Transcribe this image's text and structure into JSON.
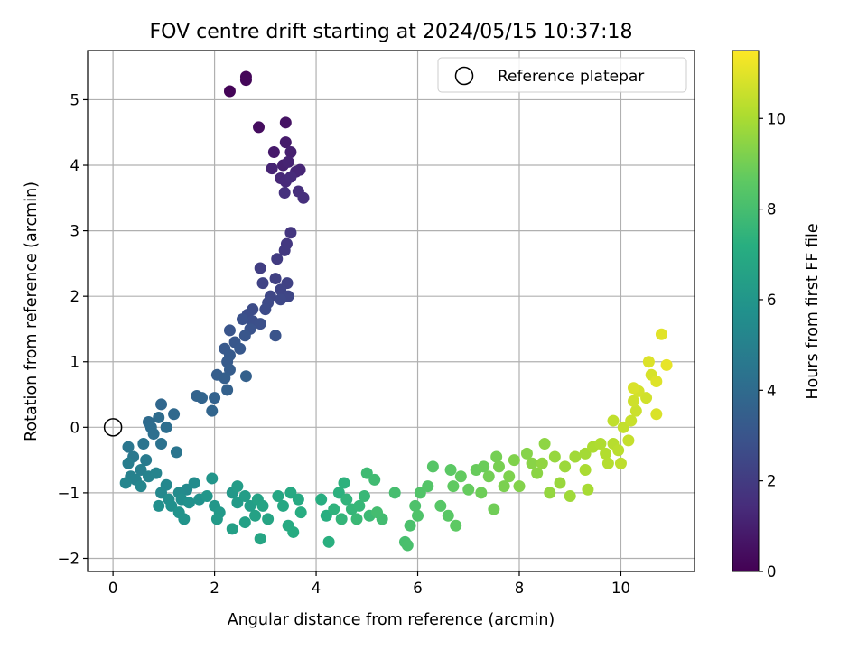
{
  "chart_data": {
    "type": "scatter",
    "title": "FOV centre drift starting at 2024/05/15 10:37:18",
    "xlabel": "Angular distance from reference (arcmin)",
    "ylabel": "Rotation from reference (arcmin)",
    "xlim": [
      -0.5,
      11.45
    ],
    "ylim": [
      -2.2,
      5.75
    ],
    "xticks": [
      0,
      2,
      4,
      6,
      8,
      10
    ],
    "yticks": [
      -2,
      -1,
      0,
      1,
      2,
      3,
      4,
      5
    ],
    "grid": true,
    "legend": {
      "position": "top-right",
      "entries": [
        "Reference platepar"
      ]
    },
    "reference_point": {
      "x": 0,
      "y": 0
    },
    "colorbar": {
      "label": "Hours from first FF file",
      "colormap": "viridis",
      "range": [
        0,
        11.5
      ],
      "ticks": [
        0,
        2,
        4,
        6,
        8,
        10
      ]
    },
    "points": [
      [
        2.3,
        5.13,
        0.1
      ],
      [
        2.62,
        5.35,
        0.15
      ],
      [
        2.62,
        5.3,
        0.2
      ],
      [
        2.87,
        4.58,
        0.4
      ],
      [
        3.4,
        4.65,
        0.6
      ],
      [
        3.17,
        4.2,
        0.8
      ],
      [
        3.4,
        4.35,
        0.85
      ],
      [
        3.5,
        4.2,
        1.0
      ],
      [
        3.35,
        4.0,
        1.05
      ],
      [
        3.45,
        4.05,
        1.1
      ],
      [
        3.13,
        3.95,
        1.15
      ],
      [
        3.68,
        3.93,
        1.2
      ],
      [
        3.6,
        3.9,
        1.25
      ],
      [
        3.3,
        3.8,
        1.3
      ],
      [
        3.4,
        3.75,
        1.35
      ],
      [
        3.5,
        3.82,
        1.4
      ],
      [
        3.65,
        3.6,
        1.5
      ],
      [
        3.75,
        3.5,
        1.55
      ],
      [
        3.38,
        3.58,
        1.6
      ],
      [
        3.5,
        2.97,
        1.8
      ],
      [
        3.42,
        2.8,
        1.85
      ],
      [
        3.38,
        2.7,
        1.9
      ],
      [
        3.23,
        2.57,
        2.0
      ],
      [
        2.9,
        2.43,
        2.1
      ],
      [
        3.2,
        2.27,
        2.2
      ],
      [
        3.43,
        2.2,
        2.25
      ],
      [
        2.95,
        2.2,
        2.3
      ],
      [
        3.3,
        2.1,
        2.35
      ],
      [
        3.45,
        2.0,
        2.4
      ],
      [
        3.1,
        2.0,
        2.45
      ],
      [
        3.3,
        1.95,
        2.5
      ],
      [
        3.05,
        1.9,
        2.55
      ],
      [
        3.0,
        1.8,
        2.6
      ],
      [
        2.75,
        1.8,
        2.65
      ],
      [
        2.65,
        1.72,
        2.7
      ],
      [
        2.75,
        1.62,
        2.75
      ],
      [
        2.9,
        1.58,
        2.8
      ],
      [
        2.55,
        1.65,
        2.85
      ],
      [
        2.7,
        1.5,
        2.9
      ],
      [
        3.2,
        1.4,
        2.95
      ],
      [
        2.3,
        1.48,
        3.0
      ],
      [
        2.6,
        1.4,
        3.05
      ],
      [
        2.4,
        1.3,
        3.1
      ],
      [
        2.5,
        1.2,
        3.15
      ],
      [
        2.2,
        1.2,
        3.2
      ],
      [
        2.3,
        1.1,
        3.25
      ],
      [
        2.25,
        1.0,
        3.3
      ],
      [
        2.3,
        0.88,
        3.35
      ],
      [
        2.05,
        0.8,
        3.4
      ],
      [
        2.2,
        0.75,
        3.45
      ],
      [
        2.62,
        0.78,
        3.5
      ],
      [
        2.25,
        0.57,
        3.55
      ],
      [
        2.0,
        0.45,
        3.6
      ],
      [
        1.65,
        0.48,
        3.65
      ],
      [
        1.75,
        0.45,
        3.7
      ],
      [
        1.95,
        0.25,
        3.75
      ],
      [
        0.95,
        0.35,
        3.8
      ],
      [
        1.2,
        0.2,
        3.9
      ],
      [
        0.7,
        0.08,
        4.0
      ],
      [
        0.9,
        0.15,
        4.05
      ],
      [
        0.75,
        0.0,
        4.1
      ],
      [
        1.05,
        0.0,
        4.15
      ],
      [
        0.8,
        -0.1,
        4.2
      ],
      [
        0.95,
        -0.25,
        4.3
      ],
      [
        0.6,
        -0.25,
        4.4
      ],
      [
        1.25,
        -0.38,
        4.45
      ],
      [
        0.3,
        -0.3,
        4.5
      ],
      [
        0.4,
        -0.45,
        4.6
      ],
      [
        0.65,
        -0.5,
        4.7
      ],
      [
        0.3,
        -0.55,
        4.8
      ],
      [
        0.55,
        -0.65,
        4.9
      ],
      [
        0.35,
        -0.75,
        5.0
      ],
      [
        0.45,
        -0.8,
        5.05
      ],
      [
        0.7,
        -0.75,
        5.1
      ],
      [
        0.85,
        -0.7,
        5.15
      ],
      [
        0.25,
        -0.85,
        5.2
      ],
      [
        0.55,
        -0.9,
        5.25
      ],
      [
        1.05,
        -0.88,
        5.3
      ],
      [
        0.95,
        -1.0,
        5.35
      ],
      [
        1.45,
        -0.95,
        5.4
      ],
      [
        1.3,
        -1.0,
        5.45
      ],
      [
        1.6,
        -0.85,
        5.5
      ],
      [
        1.1,
        -1.1,
        5.55
      ],
      [
        1.35,
        -1.1,
        5.6
      ],
      [
        0.9,
        -1.2,
        5.65
      ],
      [
        1.15,
        -1.2,
        5.7
      ],
      [
        1.5,
        -1.15,
        5.75
      ],
      [
        1.7,
        -1.1,
        5.8
      ],
      [
        1.3,
        -1.3,
        5.85
      ],
      [
        1.4,
        -1.4,
        5.9
      ],
      [
        1.95,
        -0.78,
        5.95
      ],
      [
        1.85,
        -1.05,
        6.0
      ],
      [
        2.0,
        -1.2,
        6.05
      ],
      [
        2.35,
        -1.0,
        6.1
      ],
      [
        2.1,
        -1.3,
        6.15
      ],
      [
        2.05,
        -1.4,
        6.2
      ],
      [
        2.45,
        -1.15,
        6.25
      ],
      [
        2.45,
        -0.9,
        6.3
      ],
      [
        2.6,
        -1.05,
        6.35
      ],
      [
        2.7,
        -1.2,
        6.4
      ],
      [
        2.35,
        -1.55,
        6.45
      ],
      [
        2.6,
        -1.45,
        6.5
      ],
      [
        2.8,
        -1.35,
        6.55
      ],
      [
        2.85,
        -1.1,
        6.6
      ],
      [
        2.95,
        -1.2,
        6.65
      ],
      [
        3.05,
        -1.4,
        6.7
      ],
      [
        2.9,
        -1.7,
        6.75
      ],
      [
        3.25,
        -1.05,
        6.8
      ],
      [
        3.35,
        -1.2,
        6.85
      ],
      [
        3.5,
        -1.0,
        6.9
      ],
      [
        3.65,
        -1.1,
        6.95
      ],
      [
        3.45,
        -1.5,
        7.0
      ],
      [
        3.55,
        -1.6,
        7.05
      ],
      [
        3.7,
        -1.3,
        7.1
      ],
      [
        4.1,
        -1.1,
        7.15
      ],
      [
        4.2,
        -1.35,
        7.2
      ],
      [
        4.25,
        -1.75,
        7.25
      ],
      [
        4.45,
        -1.0,
        7.3
      ],
      [
        4.55,
        -0.85,
        7.35
      ],
      [
        4.35,
        -1.25,
        7.4
      ],
      [
        4.6,
        -1.1,
        7.45
      ],
      [
        4.5,
        -1.4,
        7.5
      ],
      [
        4.7,
        -1.25,
        7.55
      ],
      [
        4.85,
        -1.2,
        7.6
      ],
      [
        4.95,
        -1.05,
        7.65
      ],
      [
        4.8,
        -1.4,
        7.7
      ],
      [
        5.05,
        -1.35,
        7.75
      ],
      [
        5.0,
        -0.7,
        7.8
      ],
      [
        5.15,
        -0.8,
        7.85
      ],
      [
        5.3,
        -1.4,
        7.9
      ],
      [
        5.2,
        -1.3,
        7.95
      ],
      [
        5.55,
        -1.0,
        8.0
      ],
      [
        5.75,
        -1.75,
        8.05
      ],
      [
        5.8,
        -1.8,
        8.1
      ],
      [
        5.85,
        -1.5,
        8.15
      ],
      [
        5.95,
        -1.2,
        8.2
      ],
      [
        6.0,
        -1.35,
        8.25
      ],
      [
        6.05,
        -1.0,
        8.3
      ],
      [
        6.2,
        -0.9,
        8.35
      ],
      [
        6.3,
        -0.6,
        8.4
      ],
      [
        6.45,
        -1.2,
        8.45
      ],
      [
        6.6,
        -1.35,
        8.5
      ],
      [
        6.65,
        -0.65,
        8.55
      ],
      [
        6.75,
        -1.5,
        8.6
      ],
      [
        6.7,
        -0.9,
        8.65
      ],
      [
        6.85,
        -0.75,
        8.7
      ],
      [
        7.0,
        -0.95,
        8.75
      ],
      [
        7.15,
        -0.65,
        8.8
      ],
      [
        7.3,
        -0.6,
        8.85
      ],
      [
        7.25,
        -1.0,
        8.9
      ],
      [
        7.5,
        -1.25,
        8.95
      ],
      [
        7.4,
        -0.75,
        9.0
      ],
      [
        7.55,
        -0.45,
        9.05
      ],
      [
        7.6,
        -0.6,
        9.1
      ],
      [
        7.7,
        -0.9,
        9.15
      ],
      [
        7.8,
        -0.75,
        9.2
      ],
      [
        7.9,
        -0.5,
        9.25
      ],
      [
        8.0,
        -0.9,
        9.3
      ],
      [
        8.15,
        -0.4,
        9.35
      ],
      [
        8.25,
        -0.55,
        9.4
      ],
      [
        8.35,
        -0.7,
        9.45
      ],
      [
        8.5,
        -0.25,
        9.5
      ],
      [
        8.45,
        -0.55,
        9.55
      ],
      [
        8.6,
        -1.0,
        9.6
      ],
      [
        8.7,
        -0.45,
        9.65
      ],
      [
        8.8,
        -0.85,
        9.7
      ],
      [
        8.9,
        -0.6,
        9.75
      ],
      [
        9.0,
        -1.05,
        9.8
      ],
      [
        9.1,
        -0.45,
        9.85
      ],
      [
        9.3,
        -0.4,
        9.9
      ],
      [
        9.35,
        -0.95,
        9.95
      ],
      [
        9.3,
        -0.65,
        10.0
      ],
      [
        9.45,
        -0.3,
        10.05
      ],
      [
        9.6,
        -0.25,
        10.1
      ],
      [
        9.7,
        -0.4,
        10.15
      ],
      [
        9.75,
        -0.55,
        10.2
      ],
      [
        9.85,
        -0.25,
        10.25
      ],
      [
        9.95,
        -0.35,
        10.3
      ],
      [
        10.0,
        -0.55,
        10.35
      ],
      [
        9.85,
        0.1,
        10.4
      ],
      [
        10.05,
        0.0,
        10.45
      ],
      [
        10.15,
        -0.2,
        10.5
      ],
      [
        10.2,
        0.1,
        10.55
      ],
      [
        10.3,
        0.25,
        10.6
      ],
      [
        10.25,
        0.4,
        10.65
      ],
      [
        10.5,
        0.45,
        10.7
      ],
      [
        10.35,
        0.55,
        10.75
      ],
      [
        10.6,
        0.8,
        10.8
      ],
      [
        10.7,
        0.2,
        10.85
      ],
      [
        10.55,
        1.0,
        10.9
      ],
      [
        10.7,
        0.7,
        10.95
      ],
      [
        10.8,
        1.42,
        11.0
      ],
      [
        10.9,
        0.95,
        11.1
      ],
      [
        10.25,
        0.6,
        10.85
      ]
    ]
  }
}
